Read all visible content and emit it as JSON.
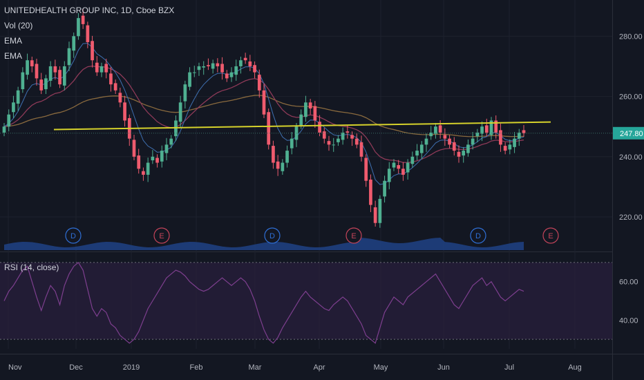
{
  "chart_data": [
    {
      "type": "candlestick",
      "title": "UNITEDHEALTH GROUP INC, 1D, Cboe BZX",
      "legend_items": [
        "Vol (20)",
        "EMA",
        "EMA"
      ],
      "y_ticks": [
        "280.00",
        "260.00",
        "240.00",
        "220.00"
      ],
      "y_tick_values": [
        280,
        260,
        240,
        220
      ],
      "ylim": [
        209,
        292
      ],
      "x_ticks": [
        "Nov",
        "Dec",
        "2019",
        "Feb",
        "Mar",
        "Apr",
        "May",
        "Jun",
        "Jul",
        "Aug"
      ],
      "last_price": "247.80",
      "colors": {
        "up": "#4fb091",
        "down": "#ef5b6e",
        "trendline": "#d6d22b",
        "volume": "#1f3f80",
        "ema_fast": "#3e6fb0",
        "ema_slow": "#8e3a58",
        "ema_long": "#8a6a3e",
        "price_label": "#26a69a"
      },
      "closes": [
        250,
        254,
        258,
        262,
        268,
        272,
        270,
        266,
        262,
        266,
        270,
        268,
        264,
        270,
        276,
        280,
        286,
        284,
        278,
        272,
        268,
        270,
        268,
        264,
        262,
        258,
        252,
        246,
        240,
        236,
        234,
        238,
        240,
        238,
        242,
        244,
        246,
        252,
        258,
        264,
        268,
        268,
        270,
        270,
        270,
        271,
        270,
        268,
        266,
        268,
        270,
        272,
        272,
        270,
        268,
        262,
        254,
        244,
        238,
        236,
        238,
        242,
        246,
        250,
        254,
        258,
        256,
        252,
        248,
        246,
        244,
        244,
        246,
        248,
        248,
        246,
        244,
        240,
        232,
        224,
        218,
        226,
        232,
        236,
        238,
        236,
        234,
        238,
        240,
        242,
        244,
        246,
        248,
        250,
        248,
        246,
        244,
        242,
        240,
        242,
        244,
        246,
        248,
        250,
        248,
        252,
        248,
        244,
        242,
        244,
        246,
        248,
        247.8
      ],
      "trendline": {
        "from": 249.0,
        "to": 251.5
      },
      "events": [
        {
          "label": "D",
          "kind": "dividend"
        },
        {
          "label": "E",
          "kind": "earnings"
        },
        {
          "label": "D",
          "kind": "dividend"
        },
        {
          "label": "E",
          "kind": "earnings"
        },
        {
          "label": "D",
          "kind": "dividend"
        },
        {
          "label": "E",
          "kind": "earnings"
        }
      ]
    },
    {
      "type": "line",
      "title": "RSI (14, close)",
      "y_ticks": [
        "60.00",
        "40.00"
      ],
      "y_tick_values": [
        60,
        40
      ],
      "ylim": [
        25,
        75
      ],
      "bands": [
        70,
        30
      ],
      "colors": {
        "line": "#7e3f8f",
        "band": "#2a1f3d"
      },
      "values": [
        50,
        55,
        58,
        62,
        66,
        68,
        60,
        52,
        45,
        52,
        58,
        55,
        48,
        58,
        64,
        68,
        70,
        66,
        56,
        46,
        42,
        46,
        44,
        38,
        36,
        32,
        30,
        28,
        30,
        34,
        40,
        46,
        50,
        54,
        58,
        62,
        64,
        66,
        65,
        63,
        60,
        58,
        56,
        55,
        56,
        58,
        60,
        62,
        60,
        58,
        60,
        62,
        60,
        56,
        50,
        42,
        35,
        30,
        28,
        31,
        36,
        40,
        44,
        48,
        52,
        55,
        52,
        50,
        48,
        46,
        45,
        48,
        50,
        52,
        50,
        46,
        42,
        38,
        32,
        30,
        28,
        36,
        44,
        48,
        52,
        50,
        48,
        52,
        54,
        56,
        58,
        60,
        62,
        64,
        60,
        56,
        52,
        48,
        46,
        50,
        54,
        58,
        60,
        62,
        58,
        60,
        56,
        52,
        50,
        52,
        54,
        56,
        55
      ]
    }
  ]
}
